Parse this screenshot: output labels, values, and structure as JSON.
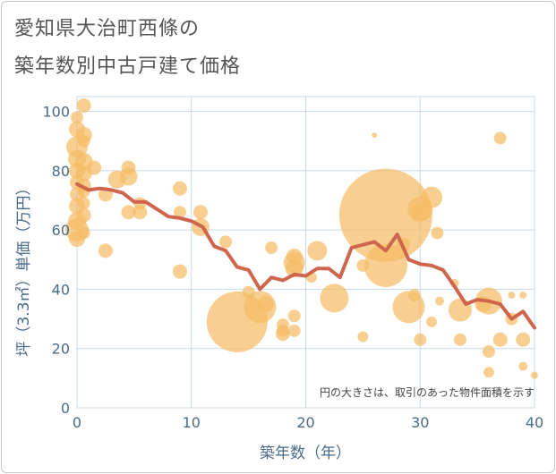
{
  "title_lines": [
    "愛知県大治町西條の",
    "築年数別中古戸建て価格"
  ],
  "colors": {
    "bubble": "#f5bd65",
    "line": "#d0654d",
    "grid": "#c9d8e8",
    "axis_text": "#4a6a8a"
  },
  "chart_data": {
    "type": "scatter",
    "title": "愛知県大治町西條の築年数別中古戸建て価格",
    "xlabel": "築年数（年）",
    "ylabel": "坪（3.3㎡）単価（万円）",
    "xlim": [
      0,
      40
    ],
    "ylim": [
      0,
      105
    ],
    "xticks": [
      0,
      10,
      20,
      30,
      40
    ],
    "yticks": [
      0,
      20,
      40,
      60,
      80,
      100
    ],
    "grid": true,
    "note": "円の大きさは、取引のあった物件面積を示す",
    "bubbles": [
      {
        "x": 0,
        "y": 98,
        "r": 7
      },
      {
        "x": 0,
        "y": 94,
        "r": 9
      },
      {
        "x": 0,
        "y": 88,
        "r": 12
      },
      {
        "x": 0,
        "y": 84,
        "r": 10
      },
      {
        "x": 0,
        "y": 80,
        "r": 9
      },
      {
        "x": 0,
        "y": 76,
        "r": 8
      },
      {
        "x": 0,
        "y": 72,
        "r": 8
      },
      {
        "x": 0,
        "y": 68,
        "r": 9
      },
      {
        "x": 0,
        "y": 63,
        "r": 10
      },
      {
        "x": 0,
        "y": 60,
        "r": 13
      },
      {
        "x": 0,
        "y": 57,
        "r": 9
      },
      {
        "x": 0.6,
        "y": 102,
        "r": 8
      },
      {
        "x": 0.6,
        "y": 92,
        "r": 9
      },
      {
        "x": 0.6,
        "y": 90,
        "r": 7
      },
      {
        "x": 0.6,
        "y": 83,
        "r": 10
      },
      {
        "x": 0.6,
        "y": 79,
        "r": 9
      },
      {
        "x": 0.6,
        "y": 75,
        "r": 8
      },
      {
        "x": 0.6,
        "y": 73,
        "r": 7
      },
      {
        "x": 0.6,
        "y": 69,
        "r": 7
      },
      {
        "x": 0.6,
        "y": 65,
        "r": 8
      },
      {
        "x": 0.6,
        "y": 59,
        "r": 7
      },
      {
        "x": 1.5,
        "y": 81,
        "r": 8
      },
      {
        "x": 2.5,
        "y": 72,
        "r": 8
      },
      {
        "x": 2.5,
        "y": 53,
        "r": 8
      },
      {
        "x": 3.5,
        "y": 77,
        "r": 10
      },
      {
        "x": 4.5,
        "y": 81,
        "r": 8
      },
      {
        "x": 4.5,
        "y": 78,
        "r": 10
      },
      {
        "x": 4.5,
        "y": 66,
        "r": 8
      },
      {
        "x": 5.5,
        "y": 69,
        "r": 7
      },
      {
        "x": 5.5,
        "y": 66,
        "r": 8
      },
      {
        "x": 9,
        "y": 74,
        "r": 8
      },
      {
        "x": 9,
        "y": 66,
        "r": 7
      },
      {
        "x": 9,
        "y": 46,
        "r": 8
      },
      {
        "x": 10.8,
        "y": 66,
        "r": 8
      },
      {
        "x": 10.8,
        "y": 61,
        "r": 10
      },
      {
        "x": 13,
        "y": 56,
        "r": 7
      },
      {
        "x": 14,
        "y": 29,
        "r": 34
      },
      {
        "x": 15,
        "y": 39,
        "r": 7
      },
      {
        "x": 16,
        "y": 34,
        "r": 18
      },
      {
        "x": 16.5,
        "y": 35,
        "r": 9
      },
      {
        "x": 17,
        "y": 54,
        "r": 7
      },
      {
        "x": 18,
        "y": 28,
        "r": 7
      },
      {
        "x": 18,
        "y": 26,
        "r": 7
      },
      {
        "x": 18,
        "y": 25,
        "r": 8
      },
      {
        "x": 19,
        "y": 51,
        "r": 9
      },
      {
        "x": 19,
        "y": 49,
        "r": 12
      },
      {
        "x": 19,
        "y": 47,
        "r": 10
      },
      {
        "x": 19,
        "y": 31,
        "r": 7
      },
      {
        "x": 19,
        "y": 26,
        "r": 7
      },
      {
        "x": 20.5,
        "y": 44,
        "r": 6
      },
      {
        "x": 21,
        "y": 53,
        "r": 11
      },
      {
        "x": 22.5,
        "y": 37,
        "r": 16
      },
      {
        "x": 25,
        "y": 48,
        "r": 7
      },
      {
        "x": 25,
        "y": 24,
        "r": 6
      },
      {
        "x": 26,
        "y": 92,
        "r": 3
      },
      {
        "x": 27,
        "y": 65,
        "r": 52
      },
      {
        "x": 27,
        "y": 48,
        "r": 24
      },
      {
        "x": 28.5,
        "y": 55,
        "r": 8
      },
      {
        "x": 29,
        "y": 34,
        "r": 18
      },
      {
        "x": 29.5,
        "y": 38,
        "r": 7
      },
      {
        "x": 30,
        "y": 67,
        "r": 14
      },
      {
        "x": 30,
        "y": 66,
        "r": 10
      },
      {
        "x": 30,
        "y": 23,
        "r": 7
      },
      {
        "x": 31,
        "y": 71,
        "r": 12
      },
      {
        "x": 31,
        "y": 29,
        "r": 6
      },
      {
        "x": 31.5,
        "y": 59,
        "r": 7
      },
      {
        "x": 31.7,
        "y": 36,
        "r": 5
      },
      {
        "x": 33,
        "y": 42,
        "r": 5
      },
      {
        "x": 33.5,
        "y": 33,
        "r": 13
      },
      {
        "x": 33.5,
        "y": 23,
        "r": 7
      },
      {
        "x": 35.5,
        "y": 35,
        "r": 9
      },
      {
        "x": 36,
        "y": 36,
        "r": 15
      },
      {
        "x": 36,
        "y": 19,
        "r": 7
      },
      {
        "x": 36,
        "y": 12,
        "r": 6
      },
      {
        "x": 37,
        "y": 91,
        "r": 7
      },
      {
        "x": 37,
        "y": 23,
        "r": 8
      },
      {
        "x": 38,
        "y": 38,
        "r": 4
      },
      {
        "x": 38,
        "y": 30,
        "r": 7
      },
      {
        "x": 39,
        "y": 38,
        "r": 4
      },
      {
        "x": 39,
        "y": 23,
        "r": 8
      },
      {
        "x": 39,
        "y": 14,
        "r": 5
      },
      {
        "x": 40,
        "y": 11,
        "r": 4
      }
    ],
    "trend": {
      "x": [
        0,
        1,
        2,
        3,
        4,
        5,
        6,
        7,
        8,
        9,
        10,
        11,
        12,
        13,
        14,
        15,
        16,
        17,
        18,
        19,
        20,
        21,
        22,
        23,
        24,
        25,
        26,
        27,
        28,
        29,
        30,
        31,
        32,
        33,
        34,
        35,
        36,
        37,
        38,
        39,
        40
      ],
      "y": [
        75.5,
        73.5,
        74,
        73.5,
        72.5,
        69.5,
        69.5,
        67,
        64.5,
        64,
        63,
        61,
        54.5,
        53,
        47.5,
        46.5,
        40,
        44,
        43,
        45,
        44.5,
        47,
        47,
        44,
        54,
        55,
        56,
        53,
        58.5,
        50,
        48.5,
        48,
        46.5,
        41,
        35,
        36.5,
        36,
        35,
        30,
        32.5,
        27
      ]
    }
  }
}
